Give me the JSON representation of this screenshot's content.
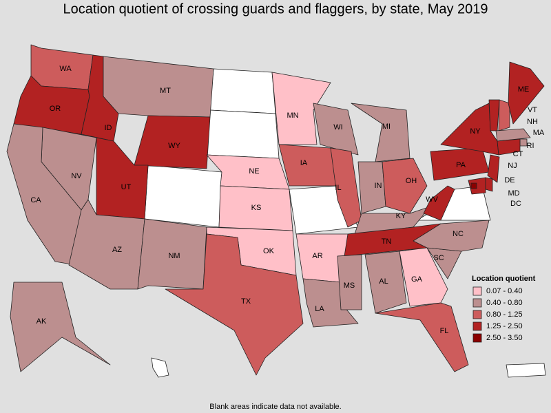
{
  "title": "Location quotient of crossing guards and flaggers, by state, May 2019",
  "legend": {
    "title": "Location quotient",
    "bins": [
      {
        "label": "0.07 - 0.40",
        "color": "#ffc0c8"
      },
      {
        "label": "0.40 - 0.80",
        "color": "#bc8f8f"
      },
      {
        "label": "0.80 - 1.25",
        "color": "#cd5c5c"
      },
      {
        "label": "1.25 - 2.50",
        "color": "#b22222"
      },
      {
        "label": "2.50 - 3.50",
        "color": "#8b0000"
      }
    ]
  },
  "states": [
    {
      "abbr": "WA",
      "bin": 2
    },
    {
      "abbr": "OR",
      "bin": 3
    },
    {
      "abbr": "ID",
      "bin": 3
    },
    {
      "abbr": "MT",
      "bin": 1
    },
    {
      "abbr": "WY",
      "bin": 3
    },
    {
      "abbr": "NV",
      "bin": 1
    },
    {
      "abbr": "CA",
      "bin": 1
    },
    {
      "abbr": "UT",
      "bin": 3
    },
    {
      "abbr": "AZ",
      "bin": 1
    },
    {
      "abbr": "NM",
      "bin": 1
    },
    {
      "abbr": "NE",
      "bin": 0
    },
    {
      "abbr": "KS",
      "bin": 0
    },
    {
      "abbr": "OK",
      "bin": 0
    },
    {
      "abbr": "TX",
      "bin": 2
    },
    {
      "abbr": "MN",
      "bin": 0
    },
    {
      "abbr": "IA",
      "bin": 2
    },
    {
      "abbr": "AR",
      "bin": 0
    },
    {
      "abbr": "LA",
      "bin": 1
    },
    {
      "abbr": "WI",
      "bin": 1
    },
    {
      "abbr": "IL",
      "bin": 2
    },
    {
      "abbr": "MI",
      "bin": 1
    },
    {
      "abbr": "IN",
      "bin": 1
    },
    {
      "abbr": "OH",
      "bin": 2
    },
    {
      "abbr": "KY",
      "bin": 1
    },
    {
      "abbr": "TN",
      "bin": 3
    },
    {
      "abbr": "MS",
      "bin": 1
    },
    {
      "abbr": "AL",
      "bin": 1
    },
    {
      "abbr": "GA",
      "bin": 0
    },
    {
      "abbr": "FL",
      "bin": 2
    },
    {
      "abbr": "SC",
      "bin": 1
    },
    {
      "abbr": "NC",
      "bin": 1
    },
    {
      "abbr": "WV",
      "bin": 3
    },
    {
      "abbr": "PA",
      "bin": 3
    },
    {
      "abbr": "NY",
      "bin": 3
    },
    {
      "abbr": "VT",
      "bin": 3
    },
    {
      "abbr": "NH",
      "bin": 2
    },
    {
      "abbr": "ME",
      "bin": 3
    },
    {
      "abbr": "MA",
      "bin": 1
    },
    {
      "abbr": "RI",
      "bin": 1
    },
    {
      "abbr": "CT",
      "bin": 3
    },
    {
      "abbr": "NJ",
      "bin": 3
    },
    {
      "abbr": "DE",
      "bin": 3
    },
    {
      "abbr": "MD",
      "bin": 3
    },
    {
      "abbr": "DC",
      "bin": 4
    },
    {
      "abbr": "AK",
      "bin": 1
    }
  ],
  "note": "Blank areas indicate data not available."
}
